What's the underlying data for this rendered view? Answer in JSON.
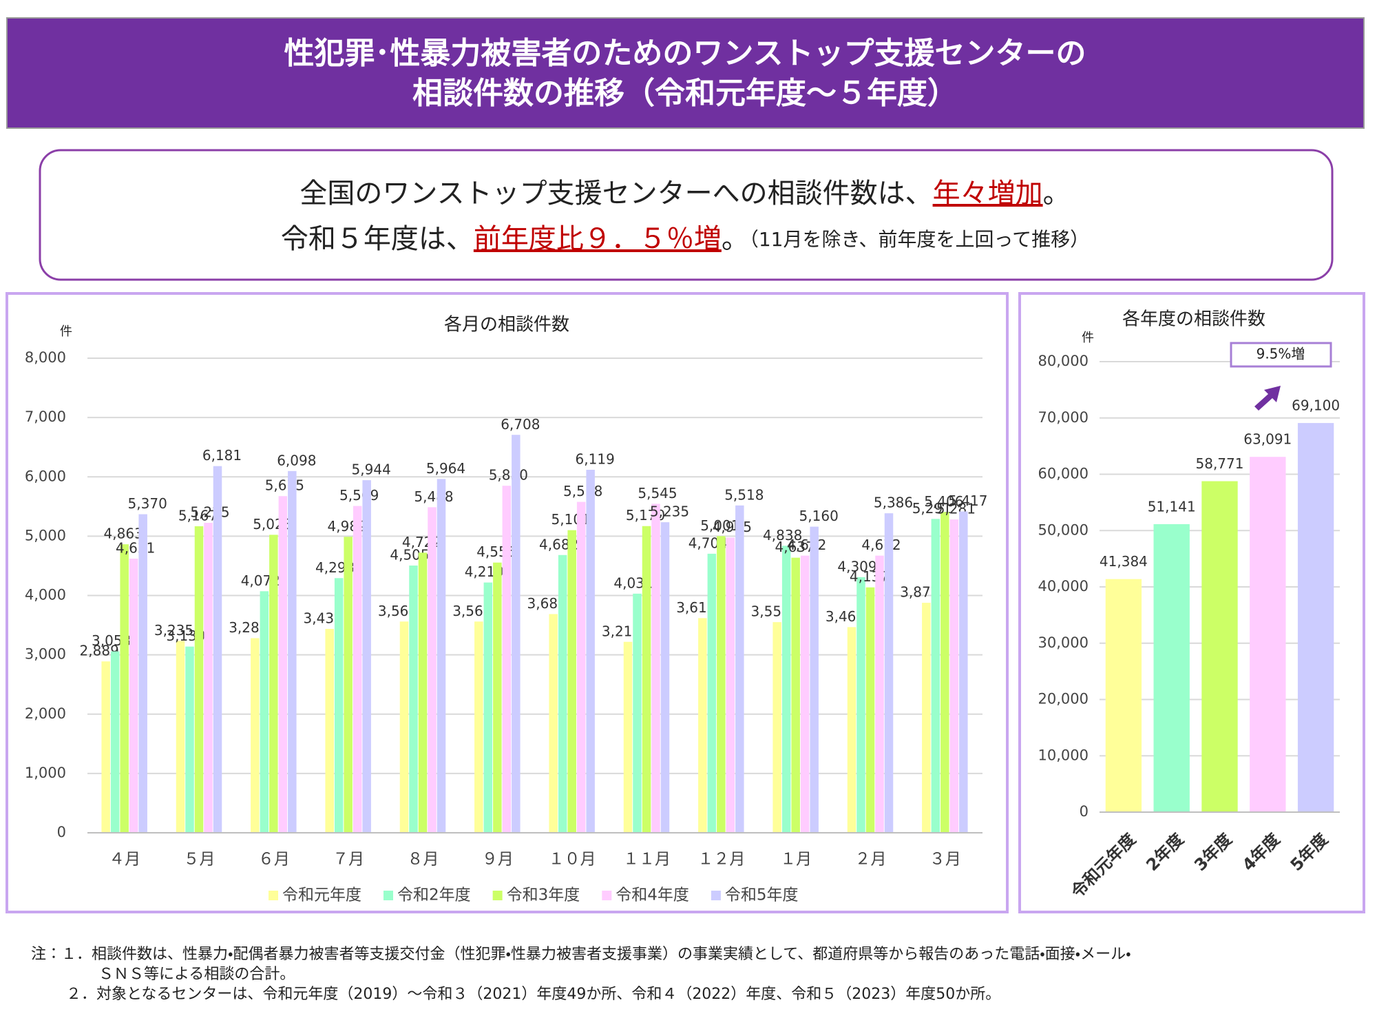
{
  "title": [
    "性犯罪･性暴力被害者のためのワンストップ支援センターの",
    "相談件数の推移（令和元年度～５年度）"
  ],
  "summary": {
    "line1": [
      "全国のワンストップ支援センターへの相談件数は、",
      "年々増加",
      "。"
    ],
    "line2": [
      "令和５年度は、",
      "前年度比９．５％増",
      "。",
      "（11月を除き、前年度を上回って推移）"
    ]
  },
  "chart_data": [
    {
      "type": "bar",
      "title": "各月の相談件数",
      "ylabel": "件",
      "categories": [
        "４月",
        "５月",
        "６月",
        "７月",
        "８月",
        "９月",
        "１０月",
        "１１月",
        "１２月",
        "１月",
        "２月",
        "３月"
      ],
      "series": [
        {
          "name": "令和元年度",
          "color": "#ffff99",
          "values": [
            2889,
            3235,
            3281,
            3437,
            3561,
            3561,
            3687,
            3219,
            3619,
            3551,
            3467,
            3877
          ],
          "value_labels": [
            "2,889",
            "3,235",
            "3,281",
            "3,437",
            "3,561",
            "3,561",
            "3,687",
            "3,219",
            "3,619",
            "3,551",
            "3,467",
            "3,877"
          ]
        },
        {
          "name": "令和2年度",
          "color": "#99ffcc",
          "values": [
            3058,
            3139,
            4072,
            4293,
            4505,
            4219,
            4682,
            4031,
            4704,
            4838,
            4309,
            5291
          ],
          "value_labels": [
            "3,058",
            "3,139",
            "4,072",
            "4,293",
            "4,505",
            "4,219",
            "4,682",
            "4,031",
            "4,704",
            "4,838",
            "4,309",
            "5,291"
          ]
        },
        {
          "name": "令和3年度",
          "color": "#ccff66",
          "values": [
            4863,
            5167,
            5023,
            4989,
            4722,
            4555,
            5101,
            5170,
            5001,
            4637,
            4137,
            5406
          ],
          "value_labels": [
            "4,863",
            "5,167",
            "5,023",
            "4,989",
            "4,722",
            "4,555",
            "5,101",
            "5,170",
            "5,001",
            "4,637",
            "4,137",
            "5,406"
          ]
        },
        {
          "name": "令和4年度",
          "color": "#ffccff",
          "values": [
            4621,
            5225,
            5675,
            5509,
            5488,
            5850,
            5578,
            5545,
            4975,
            4672,
            4672,
            5281
          ],
          "value_labels": [
            "4,621",
            "5,225",
            "5,675",
            "5,509",
            "5,488",
            "5,850",
            "5,578",
            "5,545",
            "4,975",
            "4,672",
            "4,672",
            "5,281"
          ]
        },
        {
          "name": "令和5年度",
          "color": "#ccccff",
          "values": [
            5370,
            6181,
            6098,
            5944,
            5964,
            6708,
            6119,
            5235,
            5518,
            5160,
            5386,
            5417
          ],
          "value_labels": [
            "5,370",
            "6,181",
            "6,098",
            "5,944",
            "5,964",
            "6,708",
            "6,119",
            "5,235",
            "5,518",
            "5,160",
            "5,386",
            "5,417"
          ]
        }
      ],
      "ylim": [
        0,
        8000
      ],
      "yticks": [
        0,
        {
          "value": 1000,
          "label": "1,000"
        },
        {
          "value": 2000,
          "label": "2,000"
        },
        {
          "value": 3000,
          "label": "3,000"
        },
        {
          "value": 4000,
          "label": "4,000"
        },
        {
          "value": 5000,
          "label": "5,000"
        },
        {
          "value": 6000,
          "label": "6,000"
        },
        {
          "value": 7000,
          "label": "7,000"
        },
        {
          "value": 8000,
          "label": "8,000"
        }
      ],
      "grid": true,
      "legend": "bottom"
    },
    {
      "type": "bar",
      "title": "各年度の相談件数",
      "ylabel": "件",
      "categories": [
        "令和元年度",
        "2年度",
        "3年度",
        "4年度",
        "5年度"
      ],
      "values": [
        41384,
        51141,
        58771,
        63091,
        69100
      ],
      "value_labels": [
        "41,384",
        "51,141",
        "58,771",
        "63,091",
        "69,100"
      ],
      "colors": [
        "#ffff99",
        "#99ffcc",
        "#ccff66",
        "#ffccff",
        "#ccccff"
      ],
      "ylim": [
        0,
        80000
      ],
      "yticks": [
        0,
        {
          "value": 10000,
          "label": "10,000"
        },
        {
          "value": 20000,
          "label": "20,000"
        },
        {
          "value": 30000,
          "label": "30,000"
        },
        {
          "value": 40000,
          "label": "40,000"
        },
        {
          "value": 50000,
          "label": "50,000"
        },
        {
          "value": 60000,
          "label": "60,000"
        },
        {
          "value": 70000,
          "label": "70,000"
        },
        {
          "value": 80000,
          "label": "80,000"
        }
      ],
      "grid": true,
      "annotation": "9.5%増"
    }
  ],
  "notes": [
    "注：１．相談件数は、性暴力・配偶者暴力被害者等支援交付金（性犯罪・性暴力被害者支援事業）の事業実績として、都道府県等から報告のあった電話・面接・メール・",
    "ＳＮＳ等による相談の合計。",
    "２．対象となるセンターは、令和元年度（2019）～令和３（2021）年度49か所、令和４（2022）年度、令和５（2023）年度50か所。"
  ]
}
